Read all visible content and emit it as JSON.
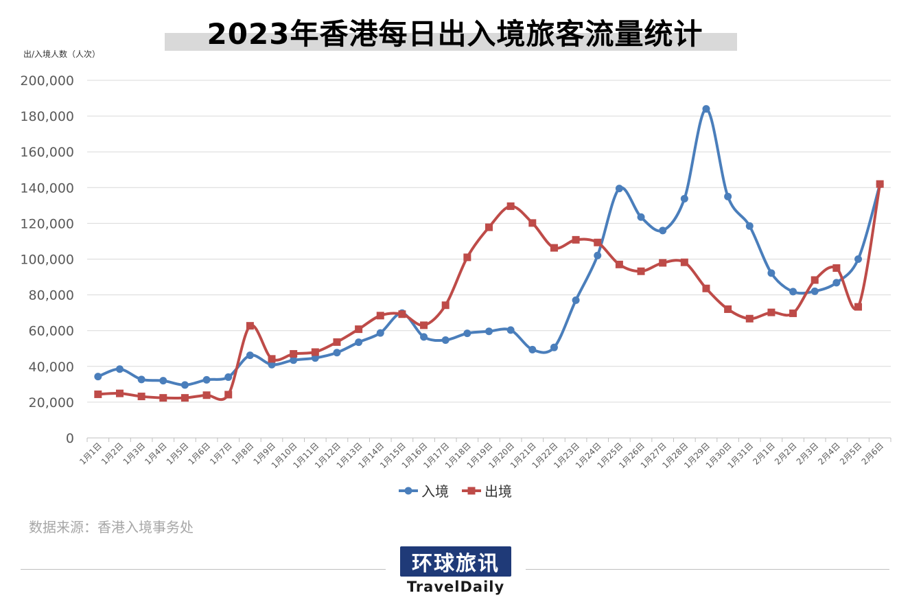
{
  "title": "2023年香港每日出入境旅客流量统计",
  "source": "数据来源：香港入境事务处",
  "logo": {
    "cn": "环球旅讯",
    "en": "TravelDaily"
  },
  "colors": {
    "entry": "#4a7ebb",
    "exit": "#be4b48",
    "grid": "#d9d9d9",
    "axis": "#bfbfbf",
    "text": "#595959"
  },
  "chart_data": {
    "type": "line",
    "ylabel": "出/入境人数（人次）",
    "xlabel": "",
    "ylim": [
      0,
      200000
    ],
    "yticks": [
      0,
      20000,
      40000,
      60000,
      80000,
      100000,
      120000,
      140000,
      160000,
      180000,
      200000
    ],
    "ytick_labels": [
      "0",
      "20,000",
      "40,000",
      "60,000",
      "80,000",
      "100,000",
      "120,000",
      "140,000",
      "160,000",
      "180,000",
      "200,000"
    ],
    "grid": true,
    "legend": "bottom",
    "categories": [
      "1月1日",
      "1月2日",
      "1月3日",
      "1月4日",
      "1月5日",
      "1月6日",
      "1月7日",
      "1月8日",
      "1月9日",
      "1月10日",
      "1月11日",
      "1月12日",
      "1月13日",
      "1月14日",
      "1月15日",
      "1月16日",
      "1月17日",
      "1月18日",
      "1月19日",
      "1月20日",
      "1月21日",
      "1月22日",
      "1月23日",
      "1月24日",
      "1月25日",
      "1月26日",
      "1月27日",
      "1月28日",
      "1月29日",
      "1月30日",
      "1月31日",
      "2月1日",
      "2月2日",
      "2月3日",
      "2月4日",
      "2月5日",
      "2月6日"
    ],
    "series": [
      {
        "name": "入境",
        "marker": "circle",
        "color": "#4a7ebb",
        "values": [
          34300,
          38500,
          32700,
          32000,
          29600,
          32500,
          34000,
          46200,
          41000,
          43500,
          44700,
          47700,
          53500,
          58700,
          69800,
          56500,
          54700,
          58500,
          59600,
          60300,
          49400,
          50600,
          77000,
          102000,
          139500,
          123500,
          116000,
          133800,
          184000,
          135000,
          118500,
          92200,
          81800,
          82000,
          86800,
          100000,
          141800
        ]
      },
      {
        "name": "出境",
        "marker": "square",
        "color": "#be4b48",
        "values": [
          24400,
          24900,
          23200,
          22400,
          22400,
          23900,
          24200,
          62700,
          44200,
          47000,
          48000,
          53600,
          60800,
          68400,
          69200,
          63000,
          74200,
          101000,
          117800,
          129600,
          120200,
          106300,
          110800,
          109300,
          97000,
          93200,
          97900,
          98200,
          83600,
          72000,
          66700,
          70200,
          69700,
          88300,
          95000,
          73300,
          142000
        ]
      }
    ]
  }
}
